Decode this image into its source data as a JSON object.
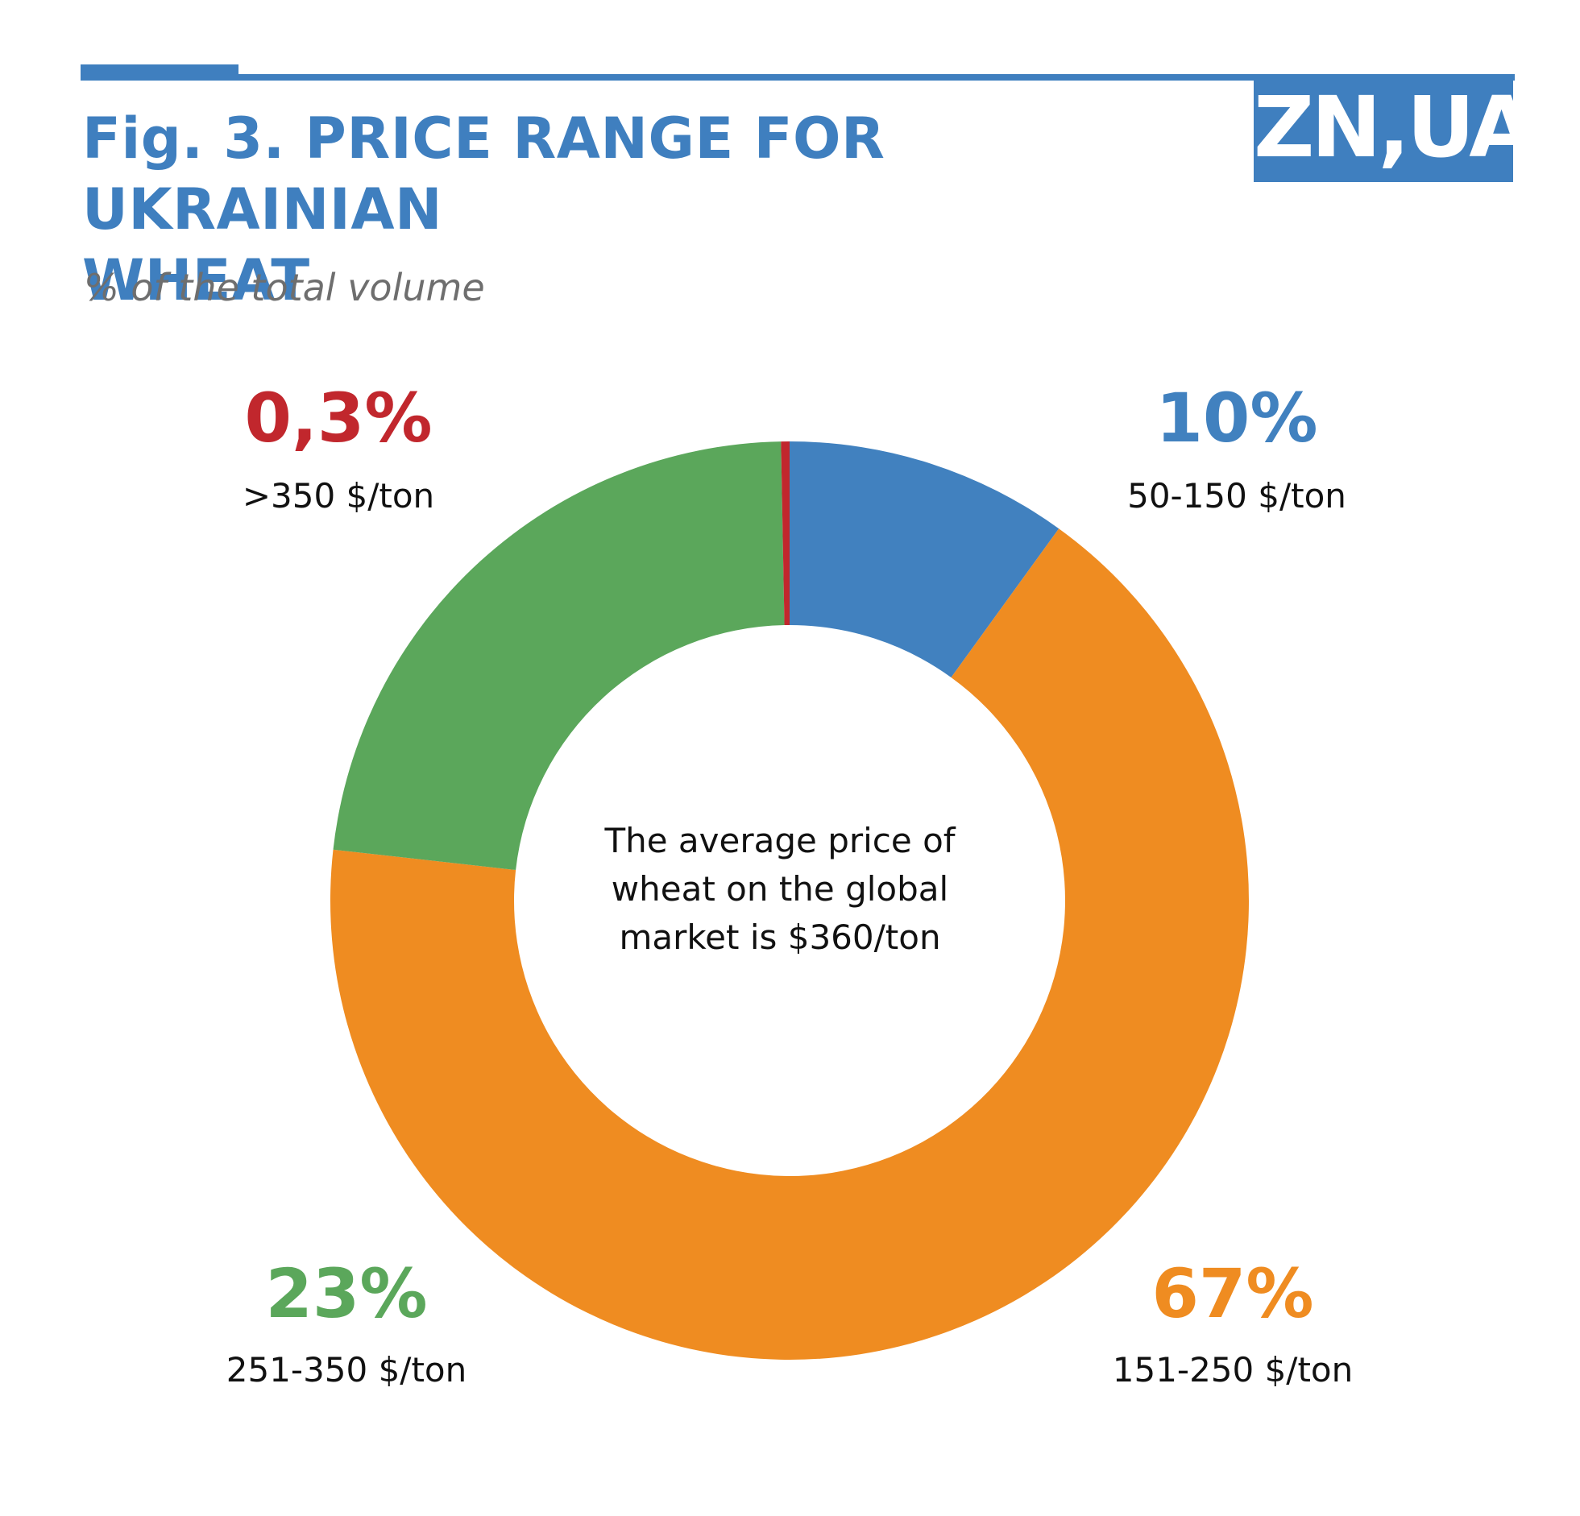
{
  "header": {
    "title_line1": "Fig. 3. PRICE RANGE FOR UKRAINIAN",
    "title_line2": "WHEAT",
    "subtitle": "% of the total volume",
    "logo_text": "ZN,UA"
  },
  "colors": {
    "brand_blue": "#3f7fbf",
    "blue": "#4181bf",
    "orange": "#ef8c21",
    "green": "#5ba75b",
    "red": "#c1272d"
  },
  "chart_data": {
    "type": "pie",
    "title": "Fig. 3. PRICE RANGE FOR UKRAINIAN WHEAT",
    "subtitle": "% of the total volume",
    "donut": true,
    "center_text": [
      "The average price of",
      "wheat on the global",
      "market is $360/ton"
    ],
    "slices": [
      {
        "label": "50-150 $/ton",
        "value": 10,
        "value_label": "10%",
        "color": "#4181bf",
        "label_pos": "top-right"
      },
      {
        "label": "151-250 $/ton",
        "value": 67,
        "value_label": "67%",
        "color": "#ef8c21",
        "label_pos": "bottom-right"
      },
      {
        "label": "251-350 $/ton",
        "value": 23,
        "value_label": "23%",
        "color": "#5ba75b",
        "label_pos": "bottom-left"
      },
      {
        "label": ">350 $/ton",
        "value": 0.3,
        "value_label": "0,3%",
        "color": "#c1272d",
        "label_pos": "top-left"
      }
    ]
  }
}
